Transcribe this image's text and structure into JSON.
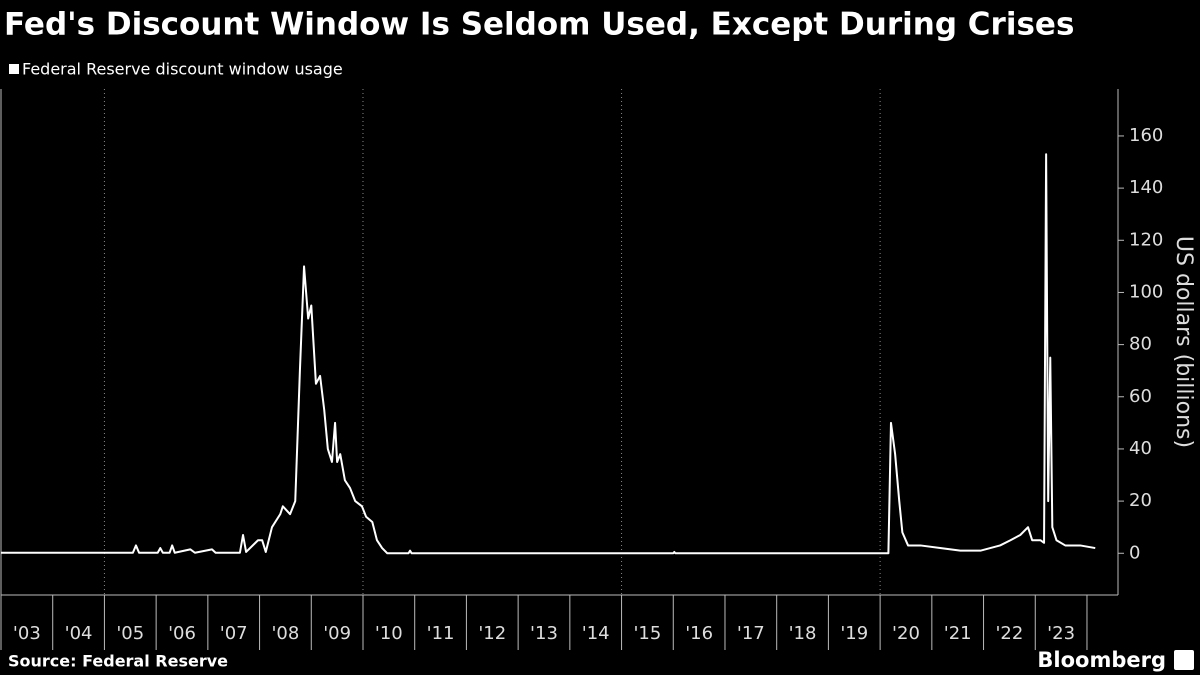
{
  "chart_data": {
    "type": "line",
    "title": "Fed's Discount Window Is Seldom Used, Except During Crises",
    "y_axis_label": "US dollars (billions)",
    "source": "Source: Federal Reserve",
    "brand": "Bloomberg",
    "series": [
      {
        "name": "Federal Reserve discount window usage",
        "color": "#ffffff",
        "x": [
          2003.0,
          2005.55,
          2005.61,
          2005.67,
          2006.03,
          2006.08,
          2006.13,
          2006.26,
          2006.31,
          2006.36,
          2006.66,
          2006.75,
          2007.08,
          2007.15,
          2007.62,
          2007.68,
          2007.74,
          2007.97,
          2008.05,
          2008.12,
          2008.24,
          2008.4,
          2008.45,
          2008.59,
          2008.69,
          2008.78,
          2008.86,
          2008.94,
          2009.0,
          2009.03,
          2009.09,
          2009.17,
          2009.25,
          2009.32,
          2009.4,
          2009.46,
          2009.5,
          2009.56,
          2009.65,
          2009.75,
          2009.85,
          2009.98,
          2010.06,
          2010.18,
          2010.27,
          2010.37,
          2010.47,
          2010.88,
          2010.91,
          2010.94,
          2016.0,
          2016.02,
          2016.04,
          2020.16,
          2020.21,
          2020.29,
          2020.37,
          2020.43,
          2020.54,
          2020.78,
          2021.16,
          2021.55,
          2021.94,
          2022.13,
          2022.32,
          2022.52,
          2022.71,
          2022.86,
          2022.94,
          2023.1,
          2023.17,
          2023.21,
          2023.25,
          2023.29,
          2023.33,
          2023.41,
          2023.58,
          2023.87,
          2024.16
        ],
        "values": [
          0.2,
          0.2,
          3,
          0.2,
          0.2,
          2,
          0.2,
          0.2,
          3,
          0.2,
          1.5,
          0.2,
          1.5,
          0.2,
          0.2,
          7,
          0.5,
          5,
          5,
          0.5,
          10,
          15,
          18,
          15,
          20,
          70,
          110,
          90,
          95,
          85,
          65,
          68,
          55,
          40,
          35,
          50,
          35,
          38,
          28,
          25,
          20,
          18,
          14,
          12,
          5,
          2,
          0,
          0,
          1,
          0,
          0,
          0.5,
          0,
          0,
          50,
          38,
          20,
          8,
          3,
          3,
          2,
          1,
          1,
          2,
          3,
          5,
          7,
          10,
          5,
          5,
          4,
          153,
          20,
          75,
          10,
          5,
          3,
          3,
          2
        ]
      }
    ],
    "xlim": [
      2003.0,
      2024.6
    ],
    "xticks": [
      {
        "value": 2003,
        "label": "'03"
      },
      {
        "value": 2004,
        "label": "'04"
      },
      {
        "value": 2005,
        "label": "'05"
      },
      {
        "value": 2006,
        "label": "'06"
      },
      {
        "value": 2007,
        "label": "'07"
      },
      {
        "value": 2008,
        "label": "'08"
      },
      {
        "value": 2009,
        "label": "'09"
      },
      {
        "value": 2010,
        "label": "'10"
      },
      {
        "value": 2011,
        "label": "'11"
      },
      {
        "value": 2012,
        "label": "'12"
      },
      {
        "value": 2013,
        "label": "'13"
      },
      {
        "value": 2014,
        "label": "'14"
      },
      {
        "value": 2015,
        "label": "'15"
      },
      {
        "value": 2016,
        "label": "'16"
      },
      {
        "value": 2017,
        "label": "'17"
      },
      {
        "value": 2018,
        "label": "'18"
      },
      {
        "value": 2019,
        "label": "'19"
      },
      {
        "value": 2020,
        "label": "'20"
      },
      {
        "value": 2021,
        "label": "'21"
      },
      {
        "value": 2022,
        "label": "'22"
      },
      {
        "value": 2023,
        "label": "'23"
      }
    ],
    "xgrid": [
      2005,
      2010,
      2015,
      2020
    ],
    "ylim": [
      -16,
      178
    ],
    "yticks": [
      0,
      20,
      40,
      60,
      80,
      100,
      120,
      140,
      160
    ],
    "y_axis_side": "right"
  }
}
